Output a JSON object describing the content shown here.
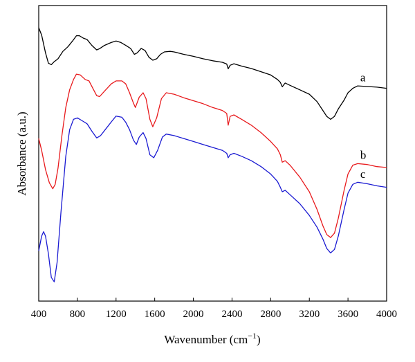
{
  "chart_data": {
    "type": "line",
    "xlabel": "Wavenumber (cm",
    "xlabel_superscript": "−1",
    "xlabel_suffix": ")",
    "ylabel": "Absorbance (a.u.)",
    "xlim": [
      400,
      4000
    ],
    "ylim": [
      0,
      100
    ],
    "x_ticks": [
      400,
      800,
      1200,
      1600,
      2000,
      2400,
      2800,
      3200,
      3600,
      4000
    ],
    "x_tick_labels": [
      "400",
      "800",
      "1200",
      "1600",
      "2000",
      "2400",
      "2800",
      "3200",
      "3600",
      "4000"
    ],
    "y_ticks_shown": false,
    "grid": false,
    "legend": "none",
    "series": [
      {
        "name": "a",
        "color": "#000000",
        "points": [
          [
            400,
            92.5
          ],
          [
            430,
            90
          ],
          [
            470,
            84
          ],
          [
            500,
            80.5
          ],
          [
            530,
            80
          ],
          [
            560,
            81
          ],
          [
            600,
            82
          ],
          [
            650,
            84.5
          ],
          [
            700,
            86
          ],
          [
            750,
            88
          ],
          [
            790,
            89.8
          ],
          [
            820,
            89.8
          ],
          [
            860,
            89
          ],
          [
            900,
            88.5
          ],
          [
            950,
            86.5
          ],
          [
            1000,
            85
          ],
          [
            1030,
            85.4
          ],
          [
            1080,
            86.5
          ],
          [
            1150,
            87.5
          ],
          [
            1200,
            88
          ],
          [
            1250,
            87.5
          ],
          [
            1300,
            86.5
          ],
          [
            1350,
            85.5
          ],
          [
            1390,
            83.5
          ],
          [
            1420,
            84
          ],
          [
            1460,
            85.5
          ],
          [
            1500,
            84.8
          ],
          [
            1540,
            82.5
          ],
          [
            1580,
            81.5
          ],
          [
            1620,
            82
          ],
          [
            1660,
            83.5
          ],
          [
            1700,
            84.3
          ],
          [
            1760,
            84.5
          ],
          [
            1800,
            84.3
          ],
          [
            1900,
            83.5
          ],
          [
            2000,
            82.8
          ],
          [
            2100,
            82
          ],
          [
            2200,
            81.3
          ],
          [
            2300,
            80.8
          ],
          [
            2345,
            80.2
          ],
          [
            2360,
            78.6
          ],
          [
            2380,
            79.8
          ],
          [
            2420,
            80.3
          ],
          [
            2500,
            79.5
          ],
          [
            2600,
            78.7
          ],
          [
            2700,
            77.6
          ],
          [
            2800,
            76.5
          ],
          [
            2870,
            75
          ],
          [
            2900,
            74
          ],
          [
            2920,
            72.5
          ],
          [
            2950,
            73.8
          ],
          [
            3000,
            73
          ],
          [
            3100,
            71.5
          ],
          [
            3200,
            70
          ],
          [
            3280,
            67.5
          ],
          [
            3340,
            64.5
          ],
          [
            3380,
            62.5
          ],
          [
            3420,
            61.5
          ],
          [
            3460,
            62.5
          ],
          [
            3500,
            65
          ],
          [
            3560,
            68
          ],
          [
            3600,
            70.5
          ],
          [
            3650,
            72
          ],
          [
            3700,
            72.8
          ],
          [
            3800,
            72.6
          ],
          [
            3900,
            72.4
          ],
          [
            4000,
            72
          ]
        ]
      },
      {
        "name": "b",
        "color": "#e8191c",
        "points": [
          [
            400,
            55
          ],
          [
            430,
            51
          ],
          [
            470,
            44.5
          ],
          [
            510,
            40
          ],
          [
            545,
            38
          ],
          [
            570,
            39.5
          ],
          [
            600,
            45
          ],
          [
            640,
            56
          ],
          [
            680,
            65.5
          ],
          [
            720,
            71.5
          ],
          [
            760,
            75
          ],
          [
            790,
            76.8
          ],
          [
            830,
            76.5
          ],
          [
            880,
            75
          ],
          [
            920,
            74.5
          ],
          [
            960,
            72
          ],
          [
            1000,
            69.5
          ],
          [
            1030,
            69.2
          ],
          [
            1080,
            71
          ],
          [
            1150,
            73.5
          ],
          [
            1200,
            74.5
          ],
          [
            1260,
            74.5
          ],
          [
            1300,
            73.5
          ],
          [
            1340,
            70.5
          ],
          [
            1380,
            67
          ],
          [
            1400,
            65.5
          ],
          [
            1440,
            69
          ],
          [
            1480,
            70.5
          ],
          [
            1510,
            68.5
          ],
          [
            1550,
            61.5
          ],
          [
            1580,
            59
          ],
          [
            1620,
            62
          ],
          [
            1670,
            68.5
          ],
          [
            1720,
            70.5
          ],
          [
            1800,
            70
          ],
          [
            1900,
            68.8
          ],
          [
            2000,
            67.8
          ],
          [
            2100,
            66.8
          ],
          [
            2200,
            65.5
          ],
          [
            2300,
            64.5
          ],
          [
            2345,
            63.5
          ],
          [
            2360,
            59.5
          ],
          [
            2380,
            62.5
          ],
          [
            2420,
            63
          ],
          [
            2500,
            61.5
          ],
          [
            2600,
            59.5
          ],
          [
            2700,
            57
          ],
          [
            2800,
            54
          ],
          [
            2870,
            51.5
          ],
          [
            2900,
            49.5
          ],
          [
            2920,
            47
          ],
          [
            2950,
            47.5
          ],
          [
            3000,
            46
          ],
          [
            3100,
            42
          ],
          [
            3200,
            37
          ],
          [
            3280,
            31
          ],
          [
            3340,
            25.5
          ],
          [
            3380,
            22.5
          ],
          [
            3420,
            21.5
          ],
          [
            3460,
            23
          ],
          [
            3500,
            28
          ],
          [
            3560,
            37.5
          ],
          [
            3600,
            43
          ],
          [
            3650,
            46
          ],
          [
            3700,
            46.5
          ],
          [
            3800,
            46.2
          ],
          [
            3900,
            45.5
          ],
          [
            4000,
            45.2
          ]
        ]
      },
      {
        "name": "c",
        "color": "#1a1ad2",
        "points": [
          [
            400,
            17
          ],
          [
            430,
            22
          ],
          [
            450,
            23.5
          ],
          [
            470,
            22
          ],
          [
            500,
            16
          ],
          [
            530,
            8
          ],
          [
            560,
            6.5
          ],
          [
            590,
            13
          ],
          [
            630,
            30
          ],
          [
            680,
            49
          ],
          [
            720,
            58
          ],
          [
            760,
            61.5
          ],
          [
            800,
            62
          ],
          [
            850,
            61
          ],
          [
            900,
            60
          ],
          [
            950,
            57.5
          ],
          [
            1000,
            55.2
          ],
          [
            1040,
            56
          ],
          [
            1100,
            58.5
          ],
          [
            1160,
            61
          ],
          [
            1200,
            62.6
          ],
          [
            1260,
            62.2
          ],
          [
            1300,
            60.5
          ],
          [
            1340,
            58
          ],
          [
            1380,
            54.5
          ],
          [
            1410,
            53
          ],
          [
            1440,
            55.5
          ],
          [
            1480,
            57
          ],
          [
            1510,
            55
          ],
          [
            1550,
            49.5
          ],
          [
            1590,
            48.5
          ],
          [
            1630,
            51
          ],
          [
            1680,
            55.5
          ],
          [
            1720,
            56.5
          ],
          [
            1800,
            56
          ],
          [
            1900,
            55
          ],
          [
            2000,
            54
          ],
          [
            2100,
            53
          ],
          [
            2200,
            52
          ],
          [
            2300,
            51
          ],
          [
            2345,
            50
          ],
          [
            2360,
            48.5
          ],
          [
            2380,
            49.5
          ],
          [
            2420,
            50
          ],
          [
            2500,
            49
          ],
          [
            2600,
            47.5
          ],
          [
            2700,
            45.5
          ],
          [
            2800,
            43
          ],
          [
            2870,
            40.5
          ],
          [
            2900,
            38.5
          ],
          [
            2920,
            37
          ],
          [
            2950,
            37.5
          ],
          [
            3000,
            36
          ],
          [
            3100,
            33
          ],
          [
            3200,
            29
          ],
          [
            3280,
            25
          ],
          [
            3340,
            21
          ],
          [
            3380,
            17.8
          ],
          [
            3420,
            16.3
          ],
          [
            3460,
            17.5
          ],
          [
            3500,
            22
          ],
          [
            3560,
            31
          ],
          [
            3600,
            36.5
          ],
          [
            3650,
            39.5
          ],
          [
            3700,
            40.2
          ],
          [
            3800,
            39.7
          ],
          [
            3900,
            39
          ],
          [
            4000,
            38.5
          ]
        ]
      }
    ]
  }
}
